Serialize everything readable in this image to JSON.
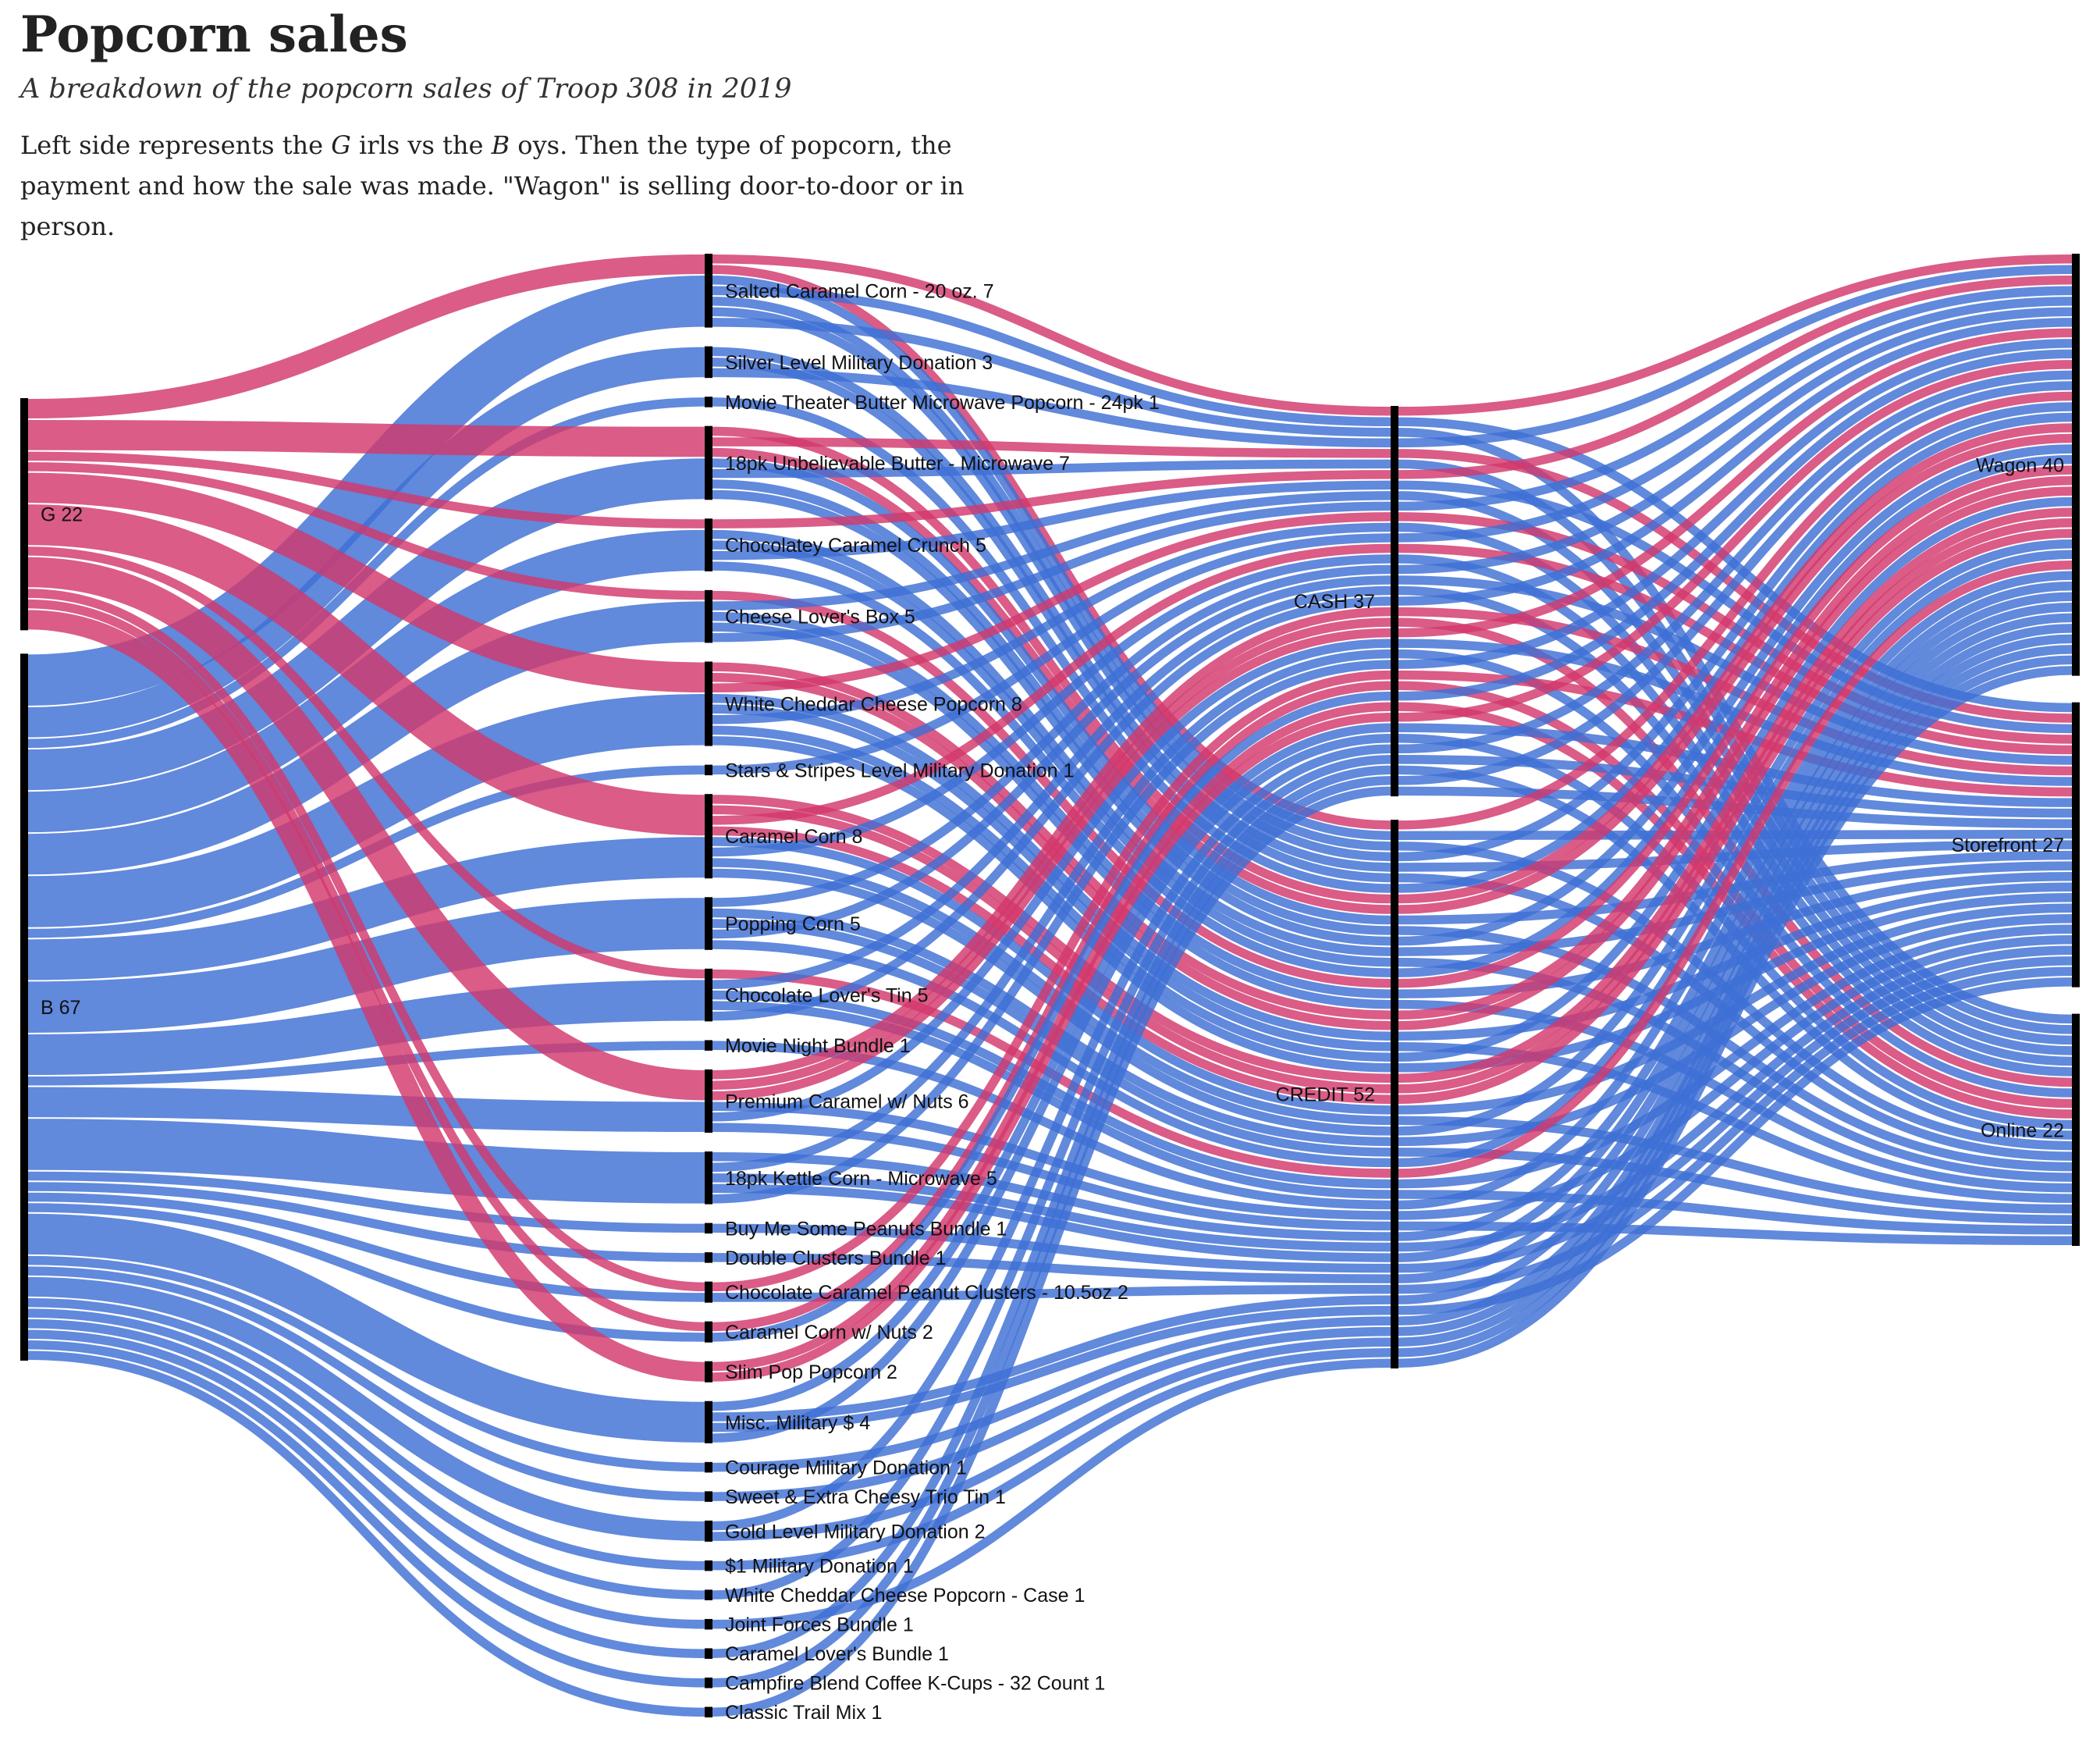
{
  "title": "Popcorn sales",
  "subtitle": "A breakdown of the popcorn sales of Troop 308 in 2019",
  "description": {
    "part1": "Left side represents the ",
    "g_letter": "G",
    "part2": " irls vs the ",
    "b_letter": "B",
    "part3": " oys. Then the type of popcorn, the payment and how the sale was made. \"Wagon\" is selling door-to-door or in person."
  },
  "colors": {
    "girls": "#d2386c",
    "boys": "#3e6fd4",
    "node": "#000000"
  },
  "chart_data": {
    "type": "sankey",
    "columns": [
      {
        "nodes": [
          {
            "name": "G",
            "value": 22
          },
          {
            "name": "B",
            "value": 67
          }
        ]
      },
      {
        "nodes": [
          {
            "name": "Salted Caramel Corn - 20 oz.",
            "value": 7
          },
          {
            "name": "Silver Level Military Donation",
            "value": 3
          },
          {
            "name": "Movie Theater Butter Microwave Popcorn - 24pk",
            "value": 1
          },
          {
            "name": "18pk Unbelievable Butter - Microwave",
            "value": 7
          },
          {
            "name": "Chocolatey Caramel Crunch",
            "value": 5
          },
          {
            "name": "Cheese Lover's Box",
            "value": 5
          },
          {
            "name": "White Cheddar Cheese Popcorn",
            "value": 8
          },
          {
            "name": "Stars & Stripes Level Military Donation",
            "value": 1
          },
          {
            "name": "Caramel Corn",
            "value": 8
          },
          {
            "name": "Popping Corn",
            "value": 5
          },
          {
            "name": "Chocolate Lover's Tin",
            "value": 5
          },
          {
            "name": "Movie Night Bundle",
            "value": 1
          },
          {
            "name": "Premium Caramel w/ Nuts",
            "value": 6
          },
          {
            "name": "18pk Kettle Corn - Microwave",
            "value": 5
          },
          {
            "name": "Buy Me Some Peanuts Bundle",
            "value": 1
          },
          {
            "name": "Double Clusters Bundle",
            "value": 1
          },
          {
            "name": "Chocolate Caramel Peanut Clusters - 10.5oz",
            "value": 2
          },
          {
            "name": "Caramel Corn w/ Nuts",
            "value": 2
          },
          {
            "name": "Slim Pop Popcorn",
            "value": 2
          },
          {
            "name": "Misc. Military $",
            "value": 4
          },
          {
            "name": "Courage Military Donation",
            "value": 1
          },
          {
            "name": "Sweet & Extra Cheesy Trio Tin",
            "value": 1
          },
          {
            "name": "Gold Level Military Donation",
            "value": 2
          },
          {
            "name": "$1 Military Donation",
            "value": 1
          },
          {
            "name": "White Cheddar Cheese Popcorn - Case",
            "value": 1
          },
          {
            "name": "Joint Forces Bundle",
            "value": 1
          },
          {
            "name": "Caramel Lover's Bundle",
            "value": 1
          },
          {
            "name": "Campfire Blend Coffee K-Cups - 32 Count",
            "value": 1
          },
          {
            "name": "Classic Trail Mix",
            "value": 1
          }
        ]
      },
      {
        "nodes": [
          {
            "name": "CASH",
            "value": 37
          },
          {
            "name": "CREDIT",
            "value": 52
          }
        ]
      },
      {
        "nodes": [
          {
            "name": "Wagon",
            "value": 40
          },
          {
            "name": "Storefront",
            "value": 27
          },
          {
            "name": "Online",
            "value": 22
          }
        ]
      }
    ],
    "girls_products": {
      "Salted Caramel Corn - 20 oz.": 2,
      "18pk Unbelievable Butter - Microwave": 3,
      "Chocolatey Caramel Crunch": 1,
      "Cheese Lover's Box": 1,
      "White Cheddar Cheese Popcorn": 3,
      "Caramel Corn": 4,
      "Chocolate Lover's Tin": 1,
      "Premium Caramel w/ Nuts": 3,
      "Chocolate Caramel Peanut Clusters - 10.5oz": 1,
      "Caramel Corn w/ Nuts": 1,
      "Slim Pop Popcorn": 2
    },
    "girls_payment": {
      "CASH": 12,
      "CREDIT": 10
    },
    "girls_channel": {
      "Wagon": 14,
      "Storefront": 5,
      "Online": 3
    },
    "boys_payment": {
      "CASH": 25,
      "CREDIT": 42
    }
  }
}
